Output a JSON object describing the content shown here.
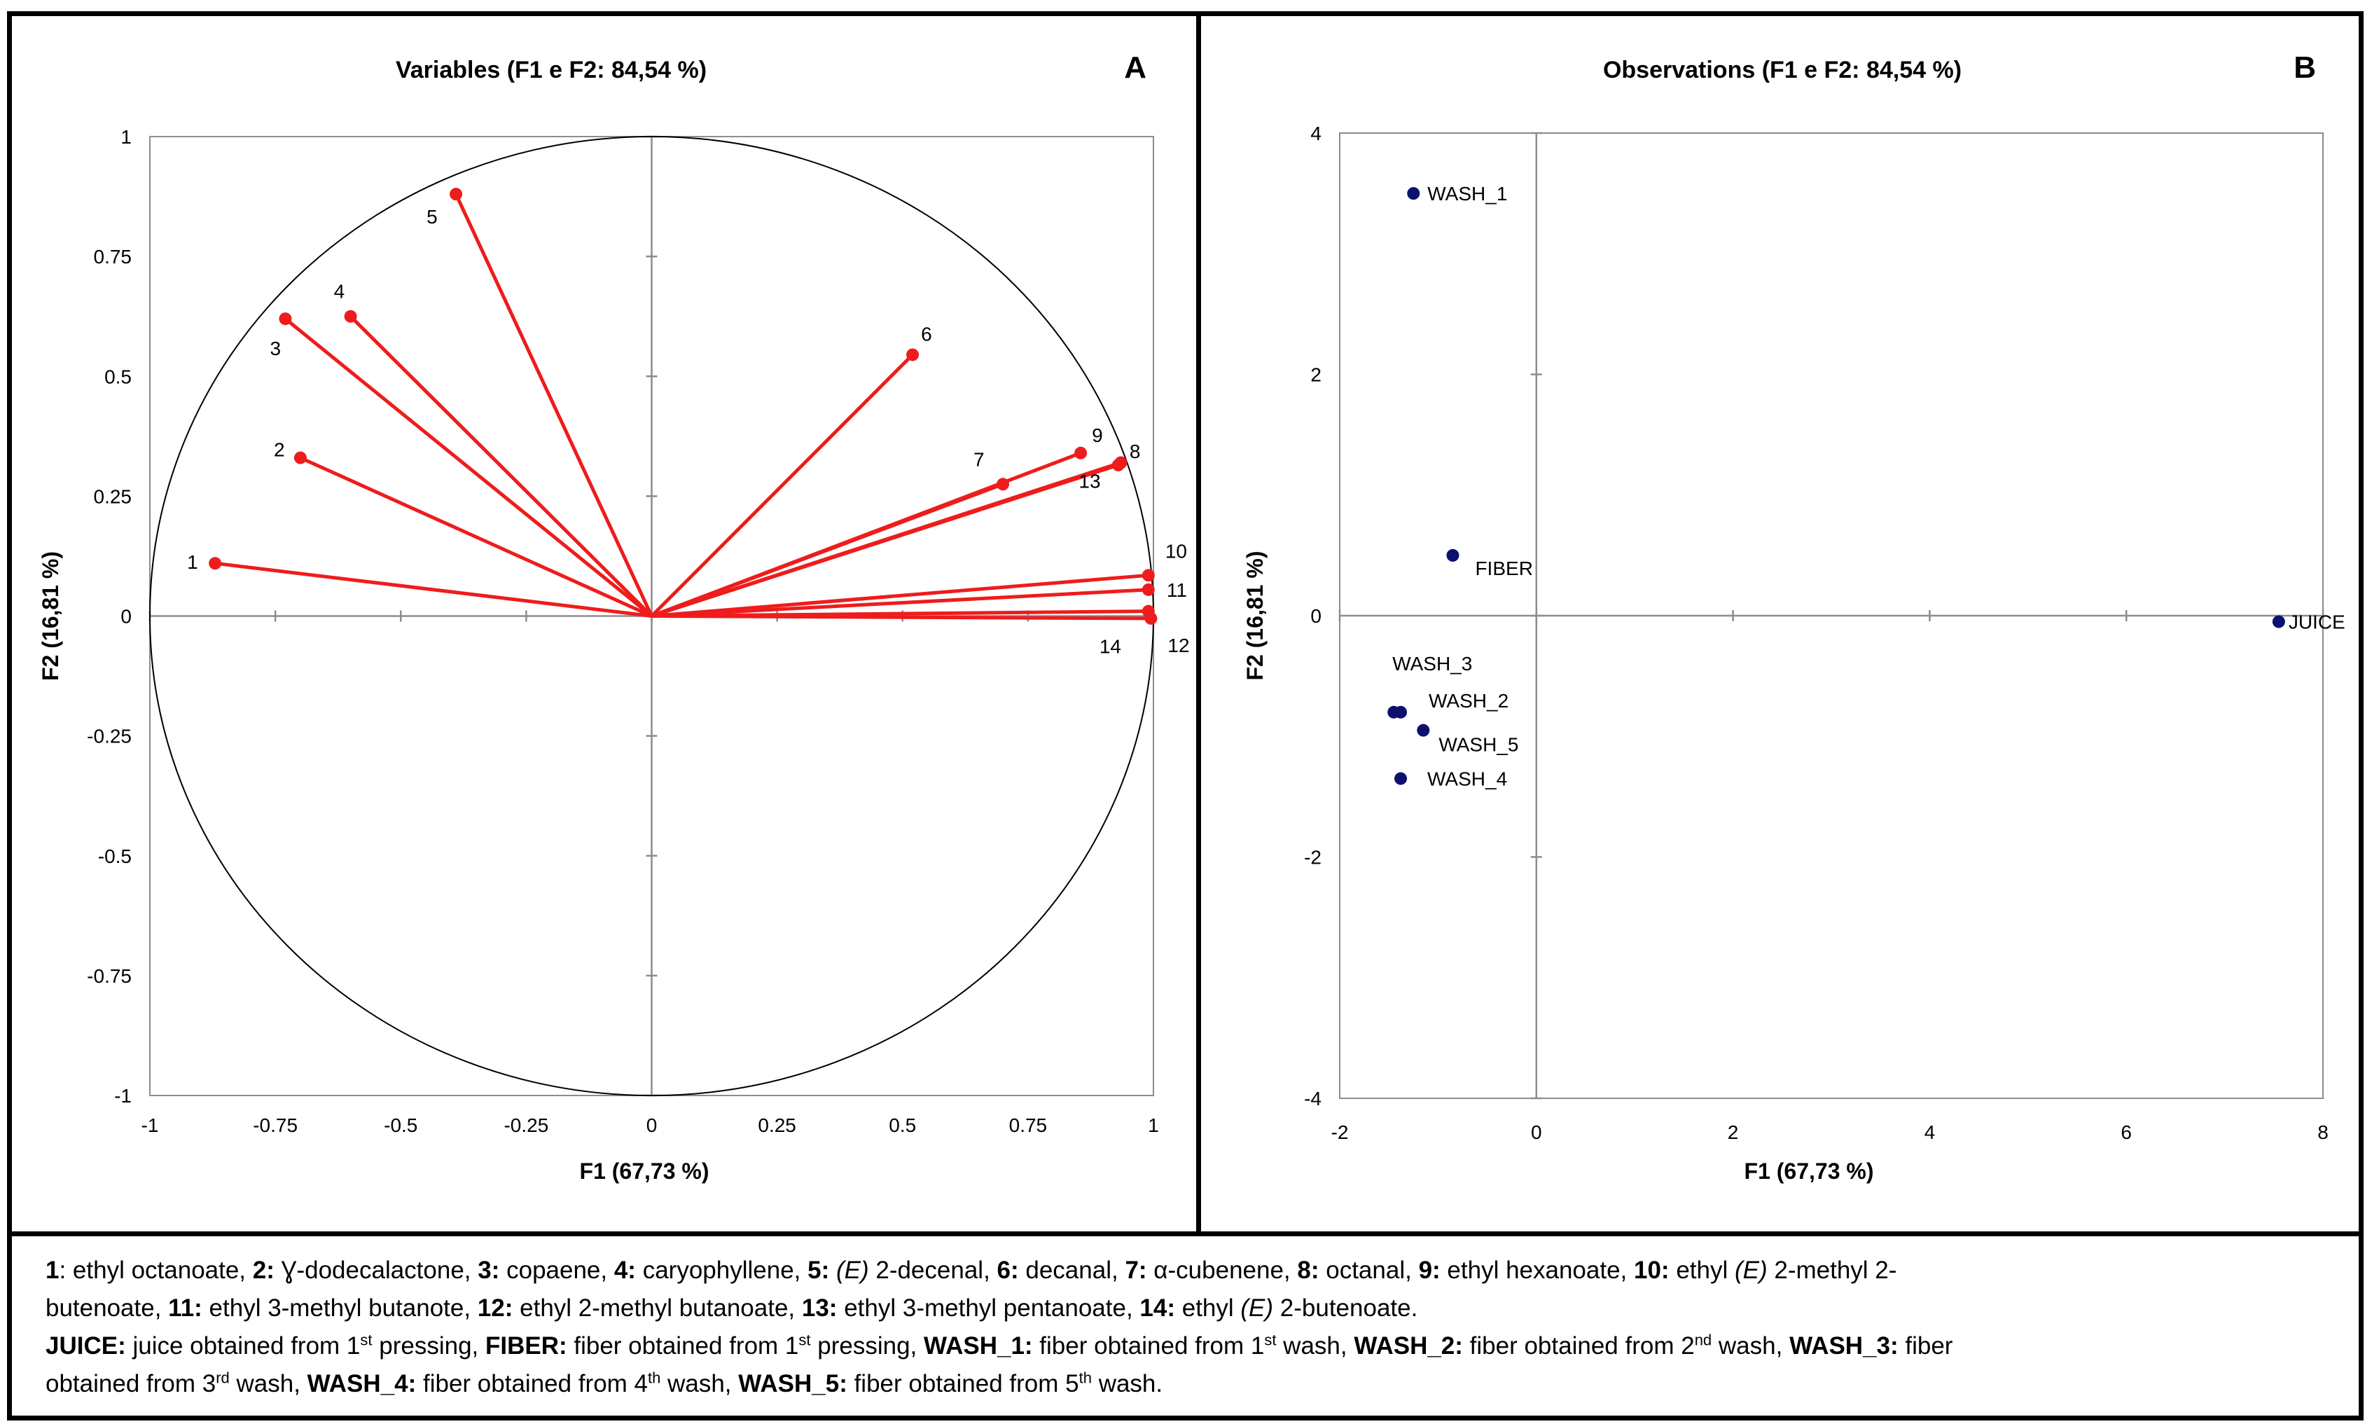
{
  "colors": {
    "vector": "#ee1c1c",
    "observation": "#0c1170",
    "axis": "#8c8c8c",
    "frame": "#000000"
  },
  "chart_data": [
    {
      "panel_label": "A",
      "type": "scatter",
      "subtype": "correlation-circle-biplot",
      "title": "Variables (F1 e F2: 84,54 %)",
      "xlabel": "F1 (67,73 %)",
      "ylabel": "F2 (16,81 %)",
      "xlim": [
        -1,
        1
      ],
      "ylim": [
        -1,
        1
      ],
      "xticks": [
        "-1",
        "-0.75",
        "-0.5",
        "-0.25",
        "0",
        "0.25",
        "0.5",
        "0.75",
        "1"
      ],
      "yticks": [
        "1",
        "0.75",
        "0.5",
        "0.25",
        "0",
        "-0.25",
        "-0.5",
        "-0.75",
        "-1"
      ],
      "unit_circle": true,
      "series": [
        {
          "name": "variables",
          "points": [
            {
              "label": "1",
              "x": -0.87,
              "y": 0.11
            },
            {
              "label": "2",
              "x": -0.7,
              "y": 0.33
            },
            {
              "label": "3",
              "x": -0.73,
              "y": 0.62
            },
            {
              "label": "4",
              "x": -0.6,
              "y": 0.625
            },
            {
              "label": "5",
              "x": -0.39,
              "y": 0.88
            },
            {
              "label": "6",
              "x": 0.52,
              "y": 0.545
            },
            {
              "label": "7",
              "x": 0.7,
              "y": 0.275
            },
            {
              "label": "8",
              "x": 0.93,
              "y": 0.315
            },
            {
              "label": "9",
              "x": 0.855,
              "y": 0.34
            },
            {
              "label": "10",
              "x": 0.99,
              "y": 0.085
            },
            {
              "label": "11",
              "x": 0.99,
              "y": 0.055
            },
            {
              "label": "12",
              "x": 0.995,
              "y": -0.005
            },
            {
              "label": "13",
              "x": 0.935,
              "y": 0.32
            },
            {
              "label": "14",
              "x": 0.99,
              "y": 0.01
            }
          ]
        }
      ]
    },
    {
      "panel_label": "B",
      "type": "scatter",
      "title": "Observations (F1 e F2: 84,54 %)",
      "xlabel": "F1 (67,73 %)",
      "ylabel": "F2 (16,81 %)",
      "xlim": [
        -2,
        8
      ],
      "ylim": [
        -4,
        4
      ],
      "xticks": [
        "-2",
        "0",
        "2",
        "4",
        "6",
        "8"
      ],
      "yticks": [
        "4",
        "2",
        "0",
        "-2",
        "-4"
      ],
      "series": [
        {
          "name": "observations",
          "points": [
            {
              "label": "WASH_1",
              "x": -1.25,
              "y": 3.5
            },
            {
              "label": "FIBER",
              "x": -0.85,
              "y": 0.5
            },
            {
              "label": "JUICE",
              "x": 7.55,
              "y": -0.05
            },
            {
              "label": "WASH_3",
              "x": -1.45,
              "y": -0.8
            },
            {
              "label": "WASH_2",
              "x": -1.38,
              "y": -0.8
            },
            {
              "label": "WASH_5",
              "x": -1.15,
              "y": -0.95
            },
            {
              "label": "WASH_4",
              "x": -1.38,
              "y": -1.35
            }
          ]
        }
      ]
    }
  ],
  "caption": {
    "line1": [
      {
        "b": "1",
        "t": ": ethyl octanoate, "
      },
      {
        "b": "2:",
        "t": " Ɣ-dodecalactone, "
      },
      {
        "b": "3:",
        "t": " copaene, "
      },
      {
        "b": "4:",
        "t": " caryophyllene, "
      },
      {
        "b": "5:",
        "t": " ",
        "i": "(E)",
        "t2": " 2-decenal, "
      },
      {
        "b": "6:",
        "t": " decanal, "
      },
      {
        "b": "7:",
        "t": " α-cubenene, "
      },
      {
        "b": "8:",
        "t": " octanal, "
      },
      {
        "b": "9:",
        "t": " ethyl hexanoate, "
      },
      {
        "b": "10:",
        "t": " ethyl ",
        "i": "(E)",
        "t2": " 2-methyl 2-"
      }
    ],
    "line2": [
      {
        "t": "butenoate, "
      },
      {
        "b": "11:",
        "t": " ethyl 3-methyl butanote, "
      },
      {
        "b": "12:",
        "t": " ethyl 2-methyl butanoate, "
      },
      {
        "b": "13:",
        "t": " ethyl 3-methyl pentanoate, "
      },
      {
        "b": "14:",
        "t": " ethyl ",
        "i": "(E)",
        "t2": " 2-butenoate."
      }
    ],
    "line3": [
      {
        "b": "JUICE:",
        "t": " juice obtained from 1",
        "sup": "st",
        "t2": " pressing, "
      },
      {
        "b": "FIBER:",
        "t": " fiber obtained from 1",
        "sup": "st",
        "t2": " pressing, "
      },
      {
        "b": "WASH_1:",
        "t": " fiber obtained from 1",
        "sup": "st",
        "t2": " wash, "
      },
      {
        "b": "WASH_2:",
        "t": " fiber obtained from 2",
        "sup": "nd",
        "t2": " wash, "
      },
      {
        "b": "WASH_3:",
        "t": " fiber"
      }
    ],
    "line4": [
      {
        "t": "obtained from 3",
        "sup": "rd",
        "t2": " wash, "
      },
      {
        "b": "WASH_4:",
        "t": " fiber obtained from 4",
        "sup": "th",
        "t2": " wash, "
      },
      {
        "b": "WASH_5:",
        "t": " fiber obtained from 5",
        "sup": "th",
        "t2": " wash."
      }
    ]
  }
}
